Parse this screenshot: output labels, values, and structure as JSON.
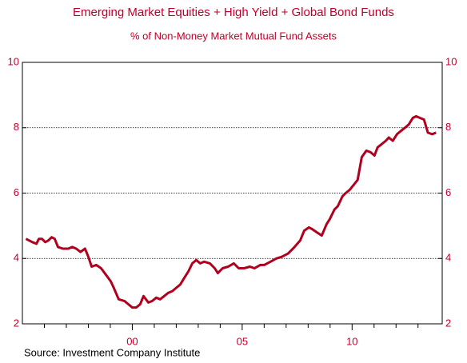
{
  "chart_data": {
    "type": "line",
    "title": "Emerging Market Equities + High Yield + Global Bond Funds",
    "subtitle": "% of Non-Money Market Mutual Fund Assets",
    "source": "Source: Investment Company Institute",
    "x": [
      1995.16,
      1995.45,
      1995.64,
      1995.75,
      1995.89,
      1996.04,
      1996.18,
      1996.33,
      1996.47,
      1996.62,
      1996.84,
      1997.09,
      1997.27,
      1997.45,
      1997.64,
      1997.85,
      1998.0,
      1998.15,
      1998.36,
      1998.58,
      1998.8,
      1999.02,
      1999.16,
      1999.38,
      1999.64,
      1999.82,
      2000.0,
      2000.18,
      2000.36,
      2000.51,
      2000.73,
      2000.91,
      2001.09,
      2001.27,
      2001.45,
      2001.64,
      2001.82,
      2002.0,
      2002.18,
      2002.36,
      2002.55,
      2002.73,
      2002.91,
      2003.09,
      2003.27,
      2003.53,
      2003.75,
      2003.89,
      2004.11,
      2004.36,
      2004.62,
      2004.84,
      2005.09,
      2005.35,
      2005.56,
      2005.82,
      2006.0,
      2006.29,
      2006.55,
      2006.8,
      2007.09,
      2007.38,
      2007.64,
      2007.82,
      2008.04,
      2008.18,
      2008.4,
      2008.62,
      2008.84,
      2008.98,
      2009.2,
      2009.35,
      2009.56,
      2009.71,
      2009.89,
      2010.07,
      2010.25,
      2010.44,
      2010.65,
      2010.84,
      2011.02,
      2011.16,
      2011.35,
      2011.53,
      2011.67,
      2011.85,
      2012.04,
      2012.22,
      2012.4,
      2012.58,
      2012.76,
      2012.91,
      2013.09,
      2013.27,
      2013.45,
      2013.64,
      2013.82
    ],
    "series": [
      {
        "name": "Emerging Market Equities + High Yield + Global Bond Funds",
        "color": "#b0001e",
        "values": [
          4.6,
          4.5,
          4.45,
          4.6,
          4.6,
          4.5,
          4.55,
          4.65,
          4.6,
          4.35,
          4.3,
          4.3,
          4.35,
          4.3,
          4.2,
          4.3,
          4.05,
          3.75,
          3.8,
          3.7,
          3.5,
          3.3,
          3.1,
          2.75,
          2.7,
          2.6,
          2.5,
          2.5,
          2.6,
          2.85,
          2.65,
          2.7,
          2.8,
          2.75,
          2.85,
          2.95,
          3.0,
          3.1,
          3.2,
          3.4,
          3.6,
          3.85,
          3.95,
          3.85,
          3.9,
          3.85,
          3.7,
          3.55,
          3.7,
          3.75,
          3.85,
          3.7,
          3.7,
          3.75,
          3.7,
          3.8,
          3.8,
          3.9,
          4.0,
          4.05,
          4.15,
          4.35,
          4.55,
          4.85,
          4.95,
          4.9,
          4.8,
          4.7,
          5.05,
          5.2,
          5.5,
          5.6,
          5.9,
          6.0,
          6.1,
          6.25,
          6.4,
          7.1,
          7.3,
          7.25,
          7.15,
          7.4,
          7.5,
          7.6,
          7.7,
          7.6,
          7.8,
          7.9,
          8.0,
          8.1,
          8.3,
          8.35,
          8.3,
          8.25,
          7.85,
          7.8,
          7.85
        ]
      }
    ],
    "xlim": [
      1995,
      2014.1
    ],
    "xticks": [
      {
        "value": 2000,
        "label": "00"
      },
      {
        "value": 2005,
        "label": "05"
      },
      {
        "value": 2010,
        "label": "10"
      }
    ],
    "xminor_ticks": [
      1996,
      1997,
      1998,
      1999,
      2001,
      2002,
      2003,
      2004,
      2006,
      2007,
      2008,
      2009,
      2011,
      2012,
      2013
    ],
    "ylim": [
      2,
      10
    ],
    "yticks": [
      2,
      4,
      6,
      8,
      10
    ],
    "grid": true
  }
}
